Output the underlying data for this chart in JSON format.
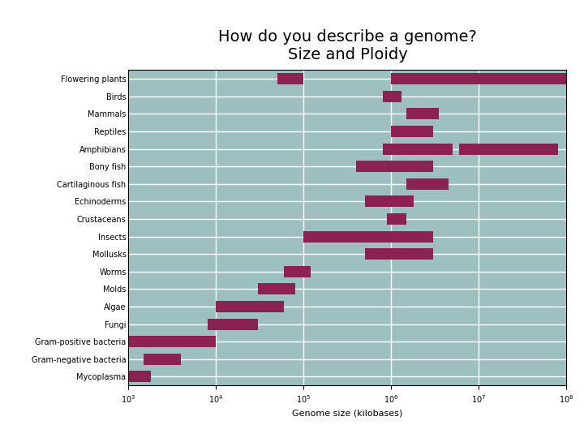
{
  "title": "How do you describe a genome?\nSize and Ploidy",
  "xlabel": "Genome size (kilobases)",
  "bar_color": "#8B2252",
  "bg_color": "#9DBFBF",
  "organisms": [
    "Flowering plants",
    "Birds",
    "Mammals",
    "Reptiles",
    "Amphibians",
    "Bony fish",
    "Cartilaginous fish",
    "Echinoderms",
    "Crustaceans",
    "Insects",
    "Mollusks",
    "Worms",
    "Molds",
    "Algae",
    "Fungi",
    "Gram-positive bacteria",
    "Gram-negative bacteria",
    "Mycoplasma"
  ],
  "ranges": [
    [
      50000,
      100000,
      1000000,
      100000000
    ],
    [
      800000,
      1300000,
      null,
      null
    ],
    [
      1500000,
      3500000,
      null,
      null
    ],
    [
      1000000,
      3000000,
      null,
      null
    ],
    [
      800000,
      5000000,
      6000000,
      80000000
    ],
    [
      400000,
      3000000,
      null,
      null
    ],
    [
      1500000,
      4500000,
      null,
      null
    ],
    [
      500000,
      1800000,
      null,
      null
    ],
    [
      900000,
      1500000,
      null,
      null
    ],
    [
      100000,
      3000000,
      null,
      null
    ],
    [
      500000,
      3000000,
      null,
      null
    ],
    [
      60000,
      120000,
      null,
      null
    ],
    [
      30000,
      80000,
      null,
      null
    ],
    [
      10000,
      60000,
      null,
      null
    ],
    [
      8000,
      30000,
      null,
      null
    ],
    [
      1000,
      10000,
      null,
      null
    ],
    [
      1500,
      4000,
      null,
      null
    ],
    [
      1000,
      1800,
      null,
      null
    ]
  ],
  "xmin": 1000,
  "xmax": 100000000,
  "title_fontsize": 14,
  "label_fontsize": 7,
  "xlabel_fontsize": 8
}
